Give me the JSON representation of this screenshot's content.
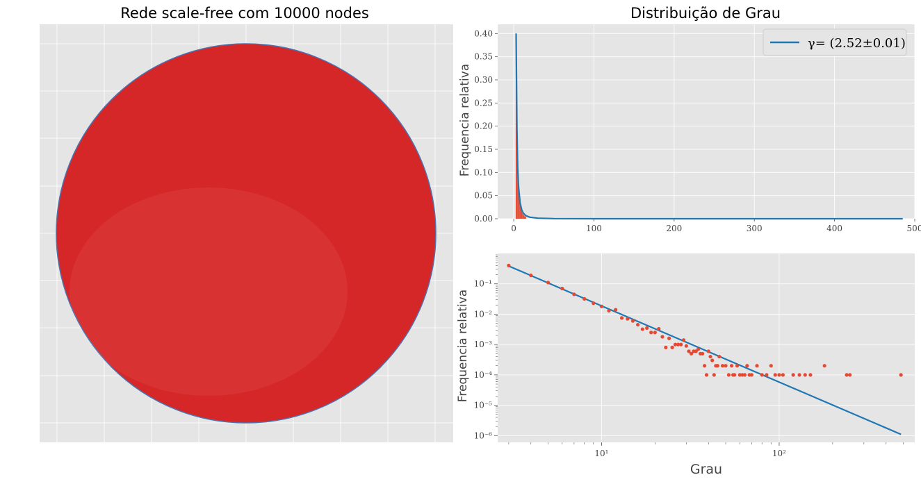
{
  "colors": {
    "panel_bg": "#e5e5e5",
    "grid": "#ffffff",
    "network_fill": "#d62728",
    "network_edge": "#4c72b0",
    "histogram": "#e24a33",
    "fit_line": "#1f77b4",
    "points": "#e24a33"
  },
  "chart_data": [
    {
      "type": "network",
      "title": "Rede scale-free com 10000 nodes",
      "grid": true,
      "axes_ticks_labels": "none"
    },
    {
      "type": "bar",
      "title": "Distribuição de Grau",
      "xlabel": "",
      "ylabel": "Frequencia relativa",
      "xlim": [
        -20,
        500
      ],
      "ylim": [
        0,
        0.42
      ],
      "x_ticks": [
        "0",
        "100",
        "200",
        "300",
        "400",
        "500"
      ],
      "x_tick_values": [
        0,
        100,
        200,
        300,
        400,
        500
      ],
      "y_ticks": [
        "0.00",
        "0.05",
        "0.10",
        "0.15",
        "0.20",
        "0.25",
        "0.30",
        "0.35",
        "0.40"
      ],
      "y_tick_values": [
        0,
        0.05,
        0.1,
        0.15,
        0.2,
        0.25,
        0.3,
        0.35,
        0.4
      ],
      "grid": true,
      "legend": {
        "position": "top-right",
        "label": "γ= (2.52±0.01)"
      },
      "histogram": {
        "x": [
          3,
          4,
          5,
          6,
          7,
          8,
          9,
          10,
          11,
          12,
          13,
          14,
          15
        ],
        "values": [
          0.4,
          0.2,
          0.115,
          0.072,
          0.047,
          0.032,
          0.022,
          0.016,
          0.012,
          0.009,
          0.007,
          0.005,
          0.004
        ]
      },
      "series": [
        {
          "name": "γ= (2.52±0.01)",
          "type": "line",
          "x": [
            3,
            4,
            5,
            6,
            8,
            10,
            12,
            15,
            20,
            30,
            50,
            100,
            200,
            485
          ],
          "values": [
            0.4,
            0.194,
            0.11,
            0.069,
            0.034,
            0.019,
            0.012,
            0.0068,
            0.0033,
            0.0012,
            0.00033,
            6e-05,
            1e-05,
            1e-06
          ]
        }
      ]
    },
    {
      "type": "scatter",
      "xlabel": "Grau",
      "ylabel": "Frequencia relativa",
      "xscale": "log",
      "yscale": "log",
      "xlim": [
        2.6,
        580
      ],
      "ylim": [
        6e-07,
        1
      ],
      "x_ticks": [
        "10¹",
        "10²"
      ],
      "x_tick_values": [
        10,
        100
      ],
      "y_ticks": [
        "10⁻⁶",
        "10⁻⁵",
        "10⁻⁴",
        "10⁻³",
        "10⁻²",
        "10⁻¹"
      ],
      "y_tick_values": [
        1e-06,
        1e-05,
        0.0001,
        0.001,
        0.01,
        0.1
      ],
      "grid": true,
      "fit_line": {
        "x": [
          3,
          485
        ],
        "values": [
          0.385,
          1.1e-06
        ]
      },
      "points": {
        "x": [
          3,
          4,
          5,
          6,
          7,
          8,
          9,
          10,
          11,
          12,
          13,
          14,
          15,
          16,
          17,
          18,
          19,
          20,
          21,
          22,
          23,
          24,
          25,
          26,
          27,
          28,
          29,
          30,
          31,
          32,
          33,
          34,
          35,
          36,
          37,
          38,
          39,
          40,
          41,
          42,
          43,
          44,
          45,
          46,
          48,
          50,
          52,
          54,
          55,
          56,
          58,
          60,
          62,
          64,
          66,
          68,
          70,
          75,
          80,
          85,
          90,
          95,
          100,
          105,
          120,
          130,
          140,
          150,
          180,
          240,
          250,
          485
        ],
        "values": [
          0.4,
          0.19,
          0.11,
          0.07,
          0.045,
          0.032,
          0.023,
          0.018,
          0.013,
          0.014,
          0.0075,
          0.007,
          0.006,
          0.0045,
          0.0032,
          0.0035,
          0.0025,
          0.0025,
          0.0033,
          0.0018,
          0.0008,
          0.0016,
          0.0008,
          0.001,
          0.001,
          0.001,
          0.0014,
          0.0009,
          0.0006,
          0.0005,
          0.0006,
          0.0006,
          0.0007,
          0.0005,
          0.0005,
          0.0002,
          0.0001,
          0.0006,
          0.0004,
          0.0003,
          0.0001,
          0.0002,
          0.0002,
          0.0004,
          0.0002,
          0.0002,
          0.0001,
          0.0002,
          0.0001,
          0.0001,
          0.0002,
          0.0001,
          0.0001,
          0.0001,
          0.0002,
          0.0001,
          0.0001,
          0.0002,
          0.0001,
          0.0001,
          0.0002,
          0.0001,
          0.0001,
          0.0001,
          0.0001,
          0.0001,
          0.0001,
          0.0001,
          0.0002,
          0.0001,
          0.0001,
          0.0001
        ]
      }
    }
  ]
}
